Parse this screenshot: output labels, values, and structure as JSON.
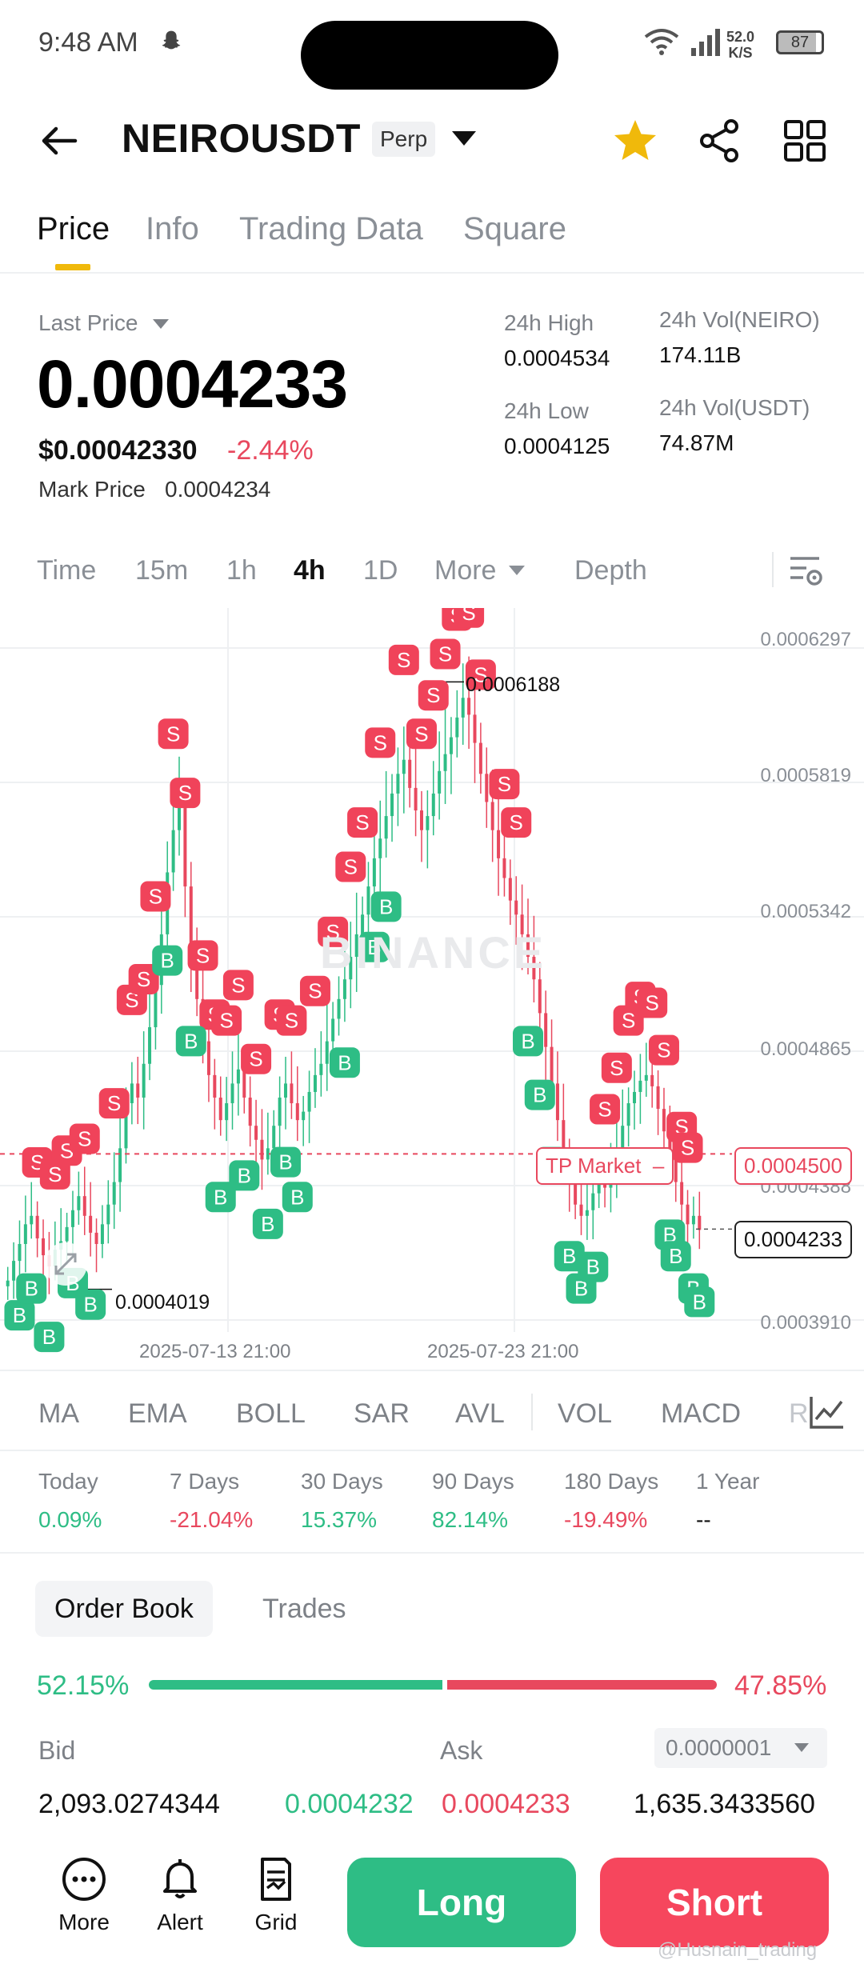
{
  "status_bar": {
    "time": "9:48 AM",
    "speed_value": "52.0",
    "speed_unit": "K/S",
    "battery": "87"
  },
  "header": {
    "symbol": "NEIROUSDT",
    "contract_type": "Perp"
  },
  "tabs": [
    "Price",
    "Info",
    "Trading Data",
    "Square"
  ],
  "price": {
    "last_price_label": "Last Price",
    "last_price": "0.0004233",
    "usd_price": "$0.00042330",
    "change_pct": "-2.44%",
    "mark_price_label": "Mark Price",
    "mark_price": "0.0004234",
    "high_label": "24h High",
    "high": "0.0004534",
    "low_label": "24h Low",
    "low": "0.0004125",
    "vol_base_label": "24h Vol(NEIRO)",
    "vol_base": "174.11B",
    "vol_quote_label": "24h Vol(USDT)",
    "vol_quote": "74.87M"
  },
  "intervals": [
    "Time",
    "15m",
    "1h",
    "4h",
    "1D",
    "More",
    "Depth"
  ],
  "active_interval": "4h",
  "chart_data": {
    "type": "candlestick",
    "interval": "4h",
    "y_ticks": [
      "0.0006297",
      "0.0005819",
      "0.0005342",
      "0.0004865",
      "0.0004388",
      "0.0003910"
    ],
    "x_ticks": [
      "2025-07-13 21:00",
      "2025-07-23 21:00"
    ],
    "high_marker": "0.0006188",
    "low_marker": "0.0004019",
    "tp_label": "TP Market",
    "tp_price": "0.0004500",
    "current_price": "0.0004233",
    "watermark": "BINANCE",
    "close_series": [
      0.000405,
      0.000412,
      0.000418,
      0.000425,
      0.000428,
      0.00042,
      0.000414,
      0.00041,
      0.000416,
      0.000419,
      0.000424,
      0.00043,
      0.000435,
      0.000428,
      0.000422,
      0.000418,
      0.000425,
      0.000432,
      0.00044,
      0.000452,
      0.000468,
      0.000475,
      0.00047,
      0.000482,
      0.000495,
      0.00051,
      0.000528,
      0.00055,
      0.000565,
      0.000575,
      0.000545,
      0.00052,
      0.000505,
      0.00049,
      0.000478,
      0.00047,
      0.000462,
      0.000468,
      0.000475,
      0.00048,
      0.00047,
      0.00046,
      0.000455,
      0.000448,
      0.000452,
      0.00046,
      0.00047,
      0.000475,
      0.000468,
      0.000462,
      0.000465,
      0.000472,
      0.000478,
      0.000482,
      0.00049,
      0.000498,
      0.000505,
      0.000512,
      0.00052,
      0.000528,
      0.000535,
      0.000545,
      0.000555,
      0.000562,
      0.00057,
      0.000578,
      0.000585,
      0.00059,
      0.00058,
      0.000572,
      0.000565,
      0.00057,
      0.000578,
      0.000586,
      0.000592,
      0.000598,
      0.000605,
      0.000612,
      0.000606,
      0.000596,
      0.000585,
      0.000575,
      0.000565,
      0.000555,
      0.000548,
      0.00054,
      0.000535,
      0.000528,
      0.00052,
      0.000512,
      0.0005,
      0.000488,
      0.000475,
      0.000462,
      0.00045,
      0.00044,
      0.000432,
      0.000428,
      0.00043,
      0.000436,
      0.000442,
      0.000438,
      0.000445,
      0.000452,
      0.00046,
      0.000468,
      0.000472,
      0.000476,
      0.000478,
      0.000474,
      0.000466,
      0.000458,
      0.000448,
      0.00044,
      0.000432,
      0.000425,
      0.000428,
      0.000423
    ]
  },
  "indicators": [
    "MA",
    "EMA",
    "BOLL",
    "SAR",
    "AVL",
    "VOL",
    "MACD",
    "R"
  ],
  "performance": [
    {
      "label": "Today",
      "value": "0.09%",
      "dir": "up"
    },
    {
      "label": "7 Days",
      "value": "-21.04%",
      "dir": "down"
    },
    {
      "label": "30 Days",
      "value": "15.37%",
      "dir": "up"
    },
    {
      "label": "90 Days",
      "value": "82.14%",
      "dir": "up"
    },
    {
      "label": "180 Days",
      "value": "-19.49%",
      "dir": "down"
    },
    {
      "label": "1 Year",
      "value": "--",
      "dir": "none"
    }
  ],
  "orderbook": {
    "tabs": [
      "Order Book",
      "Trades"
    ],
    "bid_ratio": "52.15%",
    "ask_ratio": "47.85%",
    "bid_fraction": 0.5215,
    "bid_label": "Bid",
    "ask_label": "Ask",
    "precision": "0.0000001",
    "bid_qty": "2,093.0274344",
    "bid_price": "0.0004232",
    "ask_price": "0.0004233",
    "ask_qty": "1,635.3433560"
  },
  "bottom_bar": {
    "more": "More",
    "alert": "Alert",
    "grid": "Grid",
    "long": "Long",
    "short": "Short"
  },
  "credit": "@Husnain_trading",
  "colors": {
    "up": "#2ebd85",
    "down": "#e8485e",
    "accent": "#f0b90b"
  }
}
